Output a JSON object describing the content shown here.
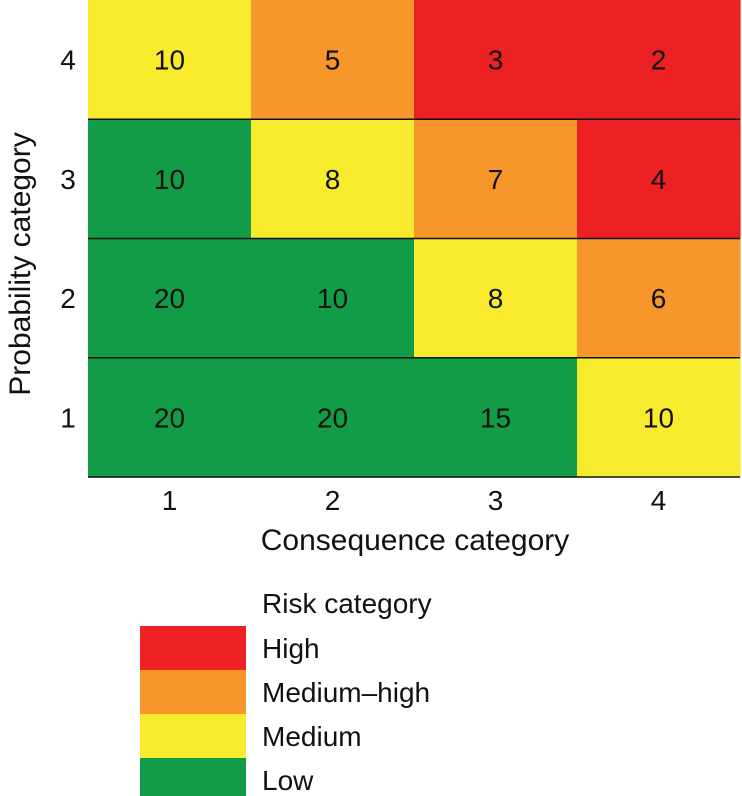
{
  "chart_data": {
    "type": "heatmap",
    "title": "",
    "xlabel": "Consequence category",
    "ylabel": "Probability category",
    "x_categories": [
      "1",
      "2",
      "3",
      "4"
    ],
    "y_categories": [
      "1",
      "2",
      "3",
      "4"
    ],
    "cells": [
      {
        "x": "1",
        "y": "4",
        "value": "10",
        "risk": "Medium"
      },
      {
        "x": "2",
        "y": "4",
        "value": "5",
        "risk": "Medium–high"
      },
      {
        "x": "3",
        "y": "4",
        "value": "3",
        "risk": "High"
      },
      {
        "x": "4",
        "y": "4",
        "value": "2",
        "risk": "High"
      },
      {
        "x": "1",
        "y": "3",
        "value": "10",
        "risk": "Low"
      },
      {
        "x": "2",
        "y": "3",
        "value": "8",
        "risk": "Medium"
      },
      {
        "x": "3",
        "y": "3",
        "value": "7",
        "risk": "Medium–high"
      },
      {
        "x": "4",
        "y": "3",
        "value": "4",
        "risk": "High"
      },
      {
        "x": "1",
        "y": "2",
        "value": "20",
        "risk": "Low"
      },
      {
        "x": "2",
        "y": "2",
        "value": "10",
        "risk": "Low"
      },
      {
        "x": "3",
        "y": "2",
        "value": "8",
        "risk": "Medium"
      },
      {
        "x": "4",
        "y": "2",
        "value": "6",
        "risk": "Medium–high"
      },
      {
        "x": "1",
        "y": "1",
        "value": "20",
        "risk": "Low"
      },
      {
        "x": "2",
        "y": "1",
        "value": "20",
        "risk": "Low"
      },
      {
        "x": "3",
        "y": "1",
        "value": "15",
        "risk": "Low"
      },
      {
        "x": "4",
        "y": "1",
        "value": "10",
        "risk": "Medium"
      }
    ],
    "legend": {
      "title": "Risk category",
      "placement": "bottom",
      "entries": [
        {
          "label": "High",
          "color": "#ED2024"
        },
        {
          "label": "Medium–high",
          "color": "#F7962B"
        },
        {
          "label": "Medium",
          "color": "#F8EB2E"
        },
        {
          "label": "Low",
          "color": "#129C48"
        }
      ]
    }
  }
}
